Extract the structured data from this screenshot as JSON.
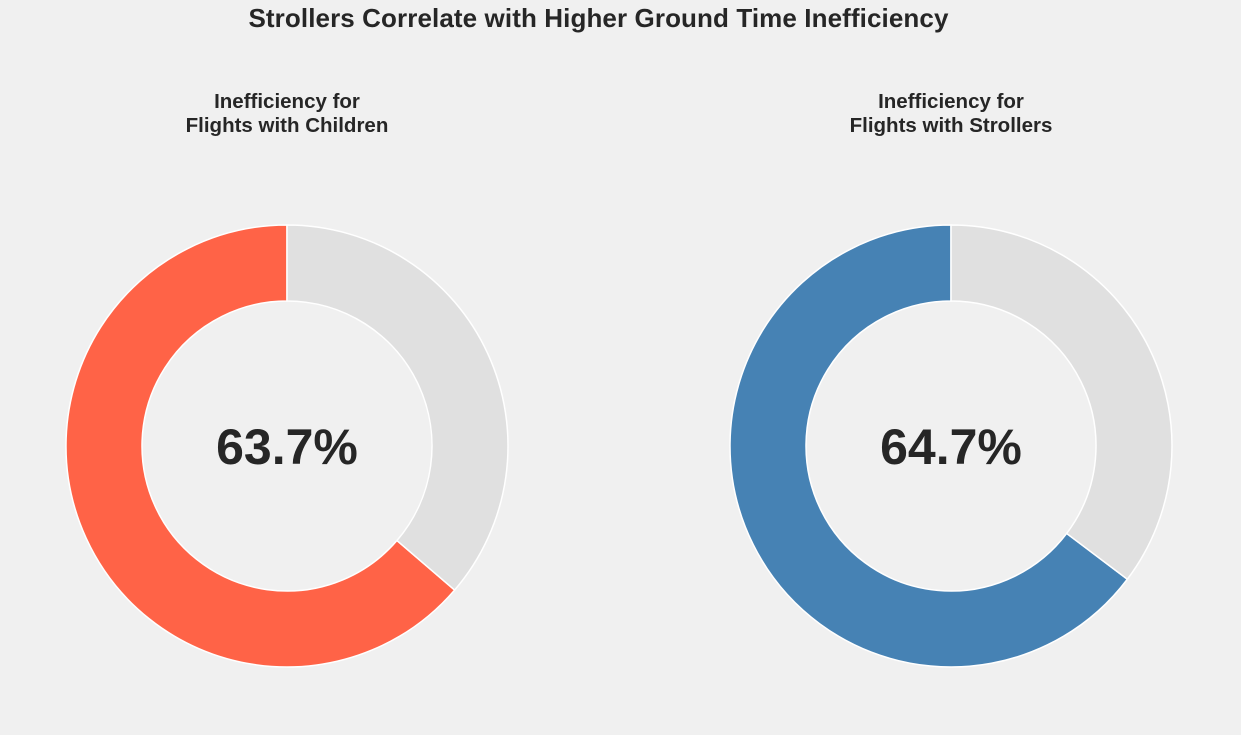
{
  "title": "Strollers Correlate with Higher Ground Time Inefficiency",
  "chart_data": [
    {
      "type": "pie",
      "title_lines": [
        "Inefficiency for",
        "Flights with Children"
      ],
      "values": [
        63.7,
        36.3
      ],
      "center_label": "63.7%",
      "colors": [
        "#ff6347",
        "#e0e0e0"
      ],
      "donut": true,
      "start": "top",
      "direction": "counterclockwise"
    },
    {
      "type": "pie",
      "title_lines": [
        "Inefficiency for",
        "Flights with Strollers"
      ],
      "values": [
        64.7,
        35.3
      ],
      "center_label": "64.7%",
      "colors": [
        "#4682b4",
        "#e0e0e0"
      ],
      "donut": true,
      "start": "top",
      "direction": "counterclockwise"
    }
  ]
}
